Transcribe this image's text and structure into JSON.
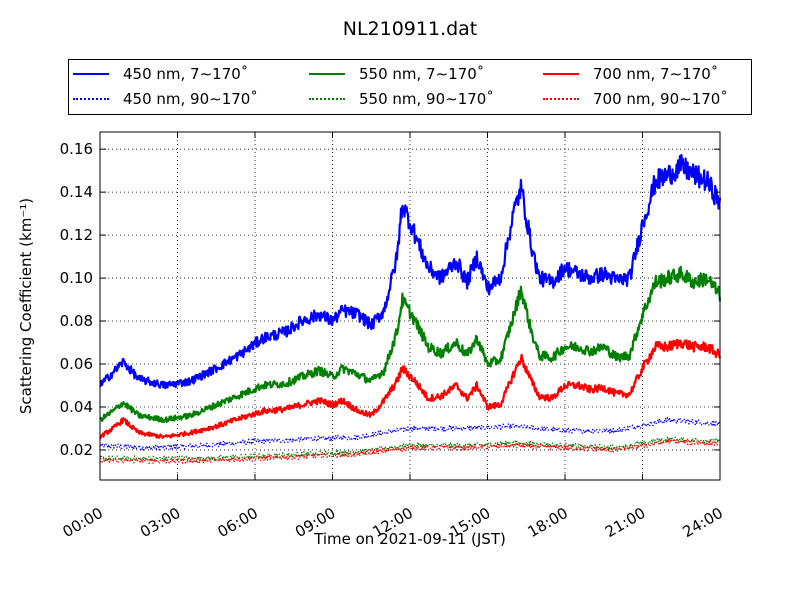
{
  "chart_data": {
    "type": "line",
    "title": "NL210911.dat",
    "xlabel": "Time on 2021-09-11 (JST)",
    "ylabel": "Scattering Coefficient (km⁻¹)",
    "x_unit": "hours (JST)",
    "xlim": [
      0,
      24
    ],
    "ylim": [
      0.006,
      0.168
    ],
    "x_ticks": [
      0,
      3,
      6,
      9,
      12,
      15,
      18,
      21,
      24
    ],
    "x_tick_labels": [
      "00:00",
      "03:00",
      "06:00",
      "09:00",
      "12:00",
      "15:00",
      "18:00",
      "21:00",
      "24:00"
    ],
    "y_ticks": [
      0.02,
      0.04,
      0.06,
      0.08,
      0.1,
      0.12,
      0.14,
      0.16
    ],
    "y_tick_labels": [
      "0.02",
      "0.04",
      "0.06",
      "0.08",
      "0.10",
      "0.12",
      "0.14",
      "0.16"
    ],
    "grid": true,
    "legend_position": "top, above plot",
    "series": [
      {
        "name": "450 nm, 7∼170˚",
        "color": "#0000ff",
        "style": "solid",
        "x": [
          0,
          0.5,
          0.9,
          1.5,
          2.5,
          3.5,
          4.5,
          5.5,
          6.3,
          7.2,
          7.8,
          8.5,
          9.0,
          9.4,
          10.0,
          10.5,
          11.0,
          11.5,
          11.7,
          12.2,
          12.7,
          13.2,
          13.8,
          14.2,
          14.6,
          15.0,
          15.5,
          16.0,
          16.3,
          16.7,
          17.0,
          17.5,
          18.0,
          18.5,
          19.0,
          19.5,
          20.0,
          20.5,
          21.0,
          21.5,
          22.0,
          22.5,
          23.0,
          23.5,
          24.0
        ],
        "y": [
          0.05,
          0.056,
          0.061,
          0.053,
          0.05,
          0.052,
          0.058,
          0.065,
          0.072,
          0.075,
          0.08,
          0.083,
          0.08,
          0.085,
          0.083,
          0.078,
          0.085,
          0.11,
          0.135,
          0.12,
          0.105,
          0.1,
          0.108,
          0.098,
          0.11,
          0.095,
          0.1,
          0.13,
          0.142,
          0.115,
          0.1,
          0.098,
          0.105,
          0.102,
          0.1,
          0.102,
          0.099,
          0.1,
          0.125,
          0.145,
          0.148,
          0.152,
          0.148,
          0.145,
          0.135
        ]
      },
      {
        "name": "450 nm, 90∼170˚",
        "color": "#0000ff",
        "style": "dotted",
        "x": [
          0,
          2,
          4,
          6,
          8,
          10,
          12,
          14,
          16,
          18,
          20,
          22,
          24
        ],
        "y": [
          0.022,
          0.021,
          0.022,
          0.024,
          0.025,
          0.026,
          0.03,
          0.03,
          0.031,
          0.029,
          0.029,
          0.034,
          0.032
        ]
      },
      {
        "name": "550 nm, 7∼170˚",
        "color": "#008000",
        "style": "solid",
        "x": [
          0,
          0.5,
          0.9,
          1.5,
          2.5,
          3.5,
          4.5,
          5.5,
          6.3,
          7.2,
          7.8,
          8.5,
          9.0,
          9.4,
          10.0,
          10.5,
          11.0,
          11.5,
          11.7,
          12.2,
          12.7,
          13.2,
          13.8,
          14.2,
          14.6,
          15.0,
          15.5,
          16.0,
          16.3,
          16.7,
          17.0,
          17.5,
          18.0,
          18.5,
          19.0,
          19.5,
          20.0,
          20.5,
          21.0,
          21.5,
          22.0,
          22.5,
          23.0,
          23.5,
          24.0
        ],
        "y": [
          0.034,
          0.038,
          0.042,
          0.036,
          0.034,
          0.036,
          0.041,
          0.046,
          0.05,
          0.051,
          0.054,
          0.057,
          0.054,
          0.058,
          0.055,
          0.052,
          0.057,
          0.075,
          0.09,
          0.08,
          0.068,
          0.065,
          0.07,
          0.064,
          0.072,
          0.06,
          0.062,
          0.082,
          0.095,
          0.075,
          0.064,
          0.063,
          0.068,
          0.068,
          0.066,
          0.068,
          0.063,
          0.064,
          0.083,
          0.098,
          0.1,
          0.102,
          0.098,
          0.1,
          0.092
        ]
      },
      {
        "name": "550 nm, 90∼170˚",
        "color": "#008000",
        "style": "dotted",
        "x": [
          0,
          2,
          4,
          6,
          8,
          10,
          12,
          14,
          16,
          18,
          20,
          22,
          24
        ],
        "y": [
          0.016,
          0.016,
          0.016,
          0.017,
          0.018,
          0.019,
          0.022,
          0.022,
          0.023,
          0.022,
          0.021,
          0.025,
          0.024
        ]
      },
      {
        "name": "700 nm, 7∼170˚",
        "color": "#ff0000",
        "style": "solid",
        "x": [
          0,
          0.5,
          0.9,
          1.5,
          2.5,
          3.5,
          4.5,
          5.5,
          6.3,
          7.2,
          7.8,
          8.5,
          9.0,
          9.4,
          10.0,
          10.5,
          11.0,
          11.5,
          11.7,
          12.2,
          12.7,
          13.2,
          13.8,
          14.2,
          14.6,
          15.0,
          15.5,
          16.0,
          16.3,
          16.7,
          17.0,
          17.5,
          18.0,
          18.5,
          19.0,
          19.5,
          20.0,
          20.5,
          21.0,
          21.5,
          22.0,
          22.5,
          23.0,
          23.5,
          24.0
        ],
        "y": [
          0.026,
          0.03,
          0.034,
          0.028,
          0.026,
          0.028,
          0.031,
          0.035,
          0.038,
          0.039,
          0.041,
          0.043,
          0.041,
          0.043,
          0.038,
          0.036,
          0.043,
          0.052,
          0.058,
          0.052,
          0.044,
          0.045,
          0.05,
          0.044,
          0.05,
          0.04,
          0.041,
          0.055,
          0.063,
          0.052,
          0.045,
          0.044,
          0.05,
          0.05,
          0.048,
          0.049,
          0.046,
          0.046,
          0.058,
          0.068,
          0.068,
          0.07,
          0.068,
          0.068,
          0.064
        ]
      },
      {
        "name": "700 nm, 90∼170˚",
        "color": "#ff0000",
        "style": "dotted",
        "x": [
          0,
          2,
          4,
          6,
          8,
          10,
          12,
          14,
          16,
          18,
          20,
          22,
          24
        ],
        "y": [
          0.015,
          0.015,
          0.015,
          0.016,
          0.017,
          0.018,
          0.021,
          0.021,
          0.022,
          0.021,
          0.02,
          0.024,
          0.023
        ]
      }
    ]
  }
}
